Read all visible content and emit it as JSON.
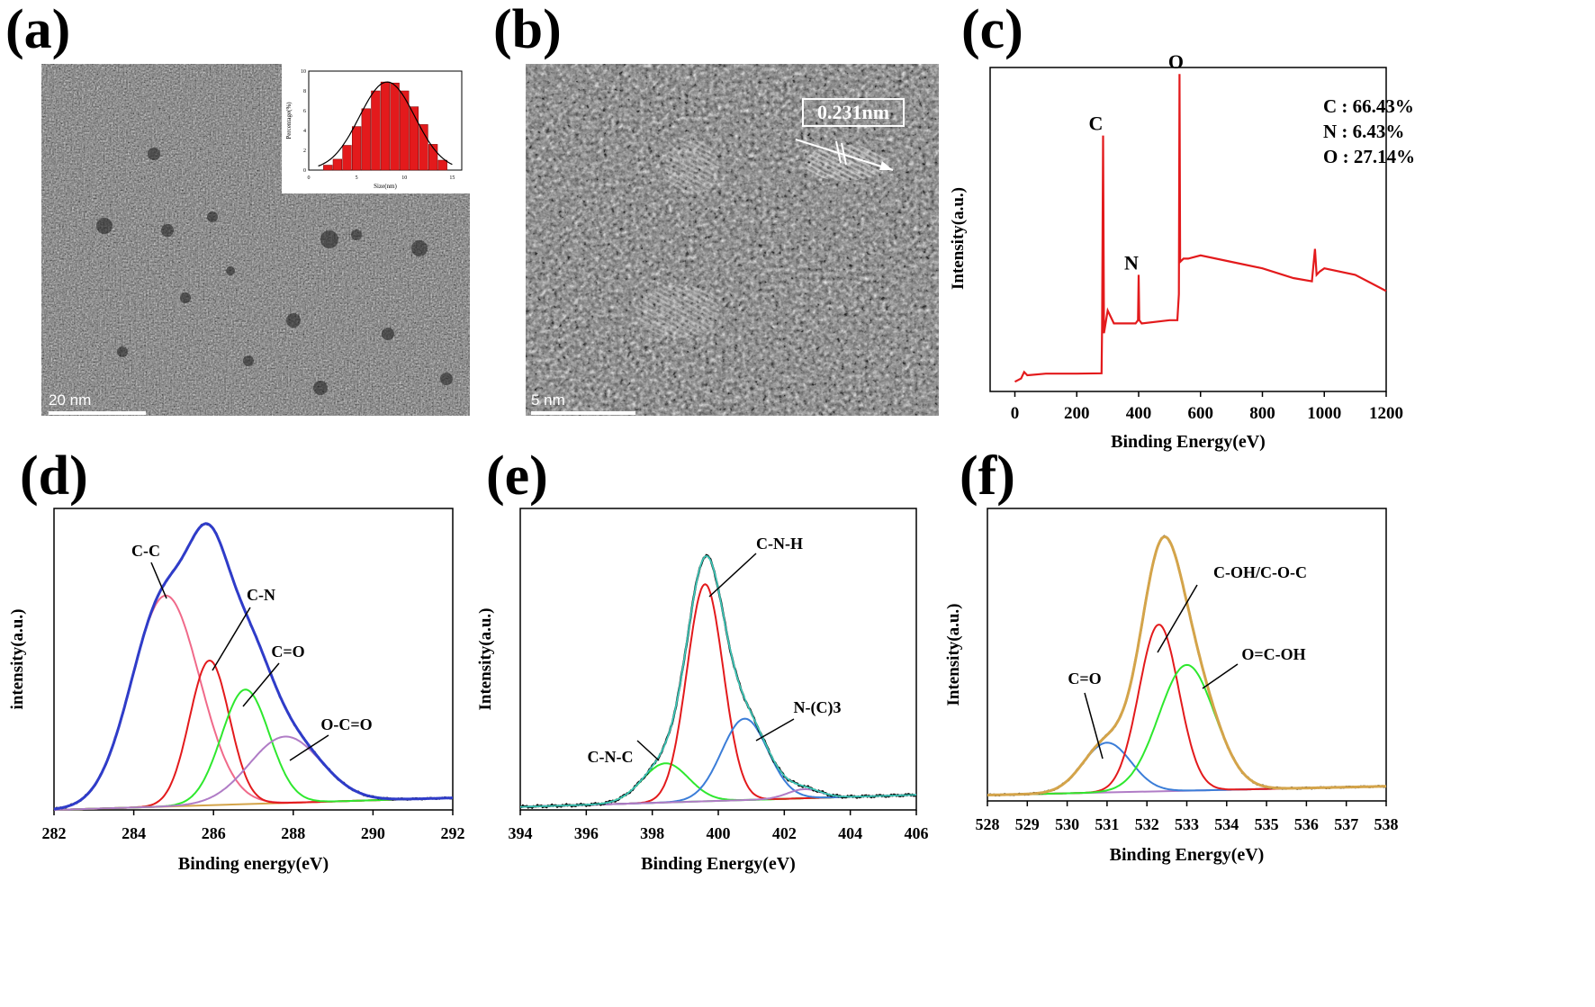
{
  "panel_labels": [
    "(a)",
    "(b)",
    "(c)",
    "(d)",
    "(e)",
    "(f)"
  ],
  "tem_a": {
    "scale_label": "20 nm"
  },
  "tem_b": {
    "scale_label": "5 nm",
    "lattice_label": "0.231nm"
  },
  "colors": {
    "red": "#e31a1c",
    "pink": "#f06a8a",
    "green": "#2ee82e",
    "blue": "#3b7dd8",
    "purple": "#b07cc6",
    "orange": "#d4a44a",
    "navy": "#2f3cc9",
    "olive": "#8b7d2a"
  },
  "chart_data": [
    {
      "id": "inset",
      "type": "bar",
      "xlabel": "Size(nm)",
      "ylabel": "Percentage(%)",
      "x_ticks": [
        "0",
        "5",
        "10",
        "15"
      ],
      "y_ticks": [
        "0",
        "2",
        "4",
        "6",
        "8",
        "10"
      ],
      "xlim": [
        0,
        16
      ],
      "ylim": [
        0,
        10
      ],
      "categories": [
        2,
        3,
        4,
        5,
        6,
        7,
        8,
        9,
        10,
        11,
        12,
        13,
        14
      ],
      "values": [
        0.5,
        1.1,
        2.5,
        4.4,
        6.2,
        8.0,
        8.9,
        8.8,
        8.0,
        6.4,
        4.6,
        2.6,
        1.0
      ]
    },
    {
      "id": "c",
      "type": "line",
      "xlabel": "Binding Energy(eV)",
      "ylabel": "Intensity(a.u.)",
      "xlim": [
        -80,
        1200
      ],
      "ylim": [
        0,
        100
      ],
      "x_ticks": [
        "0",
        "200",
        "400",
        "600",
        "800",
        "1000",
        "1200"
      ],
      "peaks": [
        {
          "label": "C",
          "x": 285,
          "y": 79
        },
        {
          "label": "N",
          "x": 400,
          "y": 36
        },
        {
          "label": "O",
          "x": 532,
          "y": 98
        }
      ],
      "composition": [
        "C : 66.43%",
        "N : 6.43%",
        "O : 27.14%"
      ],
      "series": [
        {
          "x": [
            0,
            20,
            30,
            40,
            100,
            200,
            280,
            282,
            285,
            288,
            300,
            320,
            390,
            398,
            400,
            402,
            410,
            500,
            525,
            530,
            532,
            534,
            545,
            560,
            600,
            700,
            800,
            900,
            960,
            970,
            975,
            985,
            1000,
            1100,
            1200
          ],
          "y": [
            3,
            4,
            6,
            5,
            5.5,
            5.5,
            5.6,
            20,
            79,
            18,
            25,
            21,
            21,
            22,
            36,
            22,
            21,
            22,
            22,
            30,
            98,
            40,
            41,
            41,
            42,
            40,
            38,
            35,
            34,
            44,
            36,
            37,
            38,
            36,
            31
          ]
        }
      ]
    },
    {
      "id": "d",
      "type": "line",
      "xlabel": "Binding energy(eV)",
      "ylabel": "intensity(a.u.)",
      "xlim": [
        282,
        292
      ],
      "ylim": [
        0,
        100
      ],
      "x_ticks": [
        "282",
        "284",
        "286",
        "288",
        "290",
        "292"
      ],
      "peaks": [
        {
          "label": "C-C",
          "x": 284.8
        },
        {
          "label": "C-N",
          "x": 285.9
        },
        {
          "label": "C=O",
          "x": 286.8
        },
        {
          "label": "O-C=O",
          "x": 287.8
        }
      ],
      "series": [
        {
          "name": "C-C",
          "color": "#f06a8a",
          "center": 284.8,
          "amp": 70,
          "sigma": 0.85
        },
        {
          "name": "C-N",
          "color": "#e31a1c",
          "center": 285.9,
          "amp": 48,
          "sigma": 0.5
        },
        {
          "name": "C=O",
          "color": "#2ee82e",
          "center": 286.8,
          "amp": 38,
          "sigma": 0.6
        },
        {
          "name": "O-C=O",
          "color": "#b07cc6",
          "center": 287.8,
          "amp": 22,
          "sigma": 0.9
        }
      ]
    },
    {
      "id": "e",
      "type": "line",
      "xlabel": "Binding Energy(eV)",
      "ylabel": "Intensity(a.u.)",
      "xlim": [
        394,
        406
      ],
      "ylim": [
        0,
        100
      ],
      "x_ticks": [
        "394",
        "396",
        "398",
        "400",
        "402",
        "404",
        "406"
      ],
      "peaks": [
        {
          "label": "C-N-C",
          "x": 398.4
        },
        {
          "label": "C-N-H",
          "x": 399.6
        },
        {
          "label": "N-(C)3",
          "x": 400.8
        }
      ],
      "series": [
        {
          "name": "C-N-C",
          "color": "#2ee82e",
          "center": 398.4,
          "amp": 13,
          "sigma": 0.7
        },
        {
          "name": "C-N-H",
          "color": "#e31a1c",
          "center": 399.6,
          "amp": 72,
          "sigma": 0.55
        },
        {
          "name": "N-(C)3",
          "color": "#3b7dd8",
          "center": 400.8,
          "amp": 27,
          "sigma": 0.7
        },
        {
          "name": "",
          "color": "#b07cc6",
          "center": 402.6,
          "amp": 3,
          "sigma": 0.5
        }
      ]
    },
    {
      "id": "f",
      "type": "line",
      "xlabel": "Binding Energy(eV)",
      "ylabel": "Intensity(a.u.)",
      "xlim": [
        528,
        538
      ],
      "ylim": [
        0,
        100
      ],
      "x_ticks": [
        "528",
        "529",
        "530",
        "531",
        "532",
        "533",
        "534",
        "535",
        "536",
        "537",
        "538"
      ],
      "peaks": [
        {
          "label": "C=O",
          "x": 531.0
        },
        {
          "label": "C-OH/C-O-C",
          "x": 532.3
        },
        {
          "label": "O=C-OH",
          "x": 533.0
        }
      ],
      "series": [
        {
          "name": "C=O",
          "color": "#3b7dd8",
          "center": 531.0,
          "amp": 17,
          "sigma": 0.6
        },
        {
          "name": "C-OH/C-O-C",
          "color": "#e31a1c",
          "center": 532.3,
          "amp": 57,
          "sigma": 0.5
        },
        {
          "name": "O=C-OH",
          "color": "#2ee82e",
          "center": 533.0,
          "amp": 43,
          "sigma": 0.7
        }
      ]
    }
  ]
}
